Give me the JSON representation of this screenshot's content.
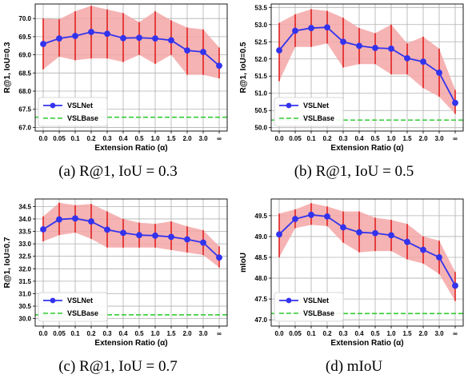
{
  "chart_data": [
    {
      "type": "line",
      "caption": "(a) R@1, IoU = 0.3",
      "ylabel": "R@1, IoU=0.3",
      "xlabel": "Extension Ratio (α)",
      "categories": [
        "0.0",
        "0.05",
        "0.1",
        "0.2",
        "0.3",
        "0.4",
        "0.5",
        "1.0",
        "1.5",
        "2.0",
        "3.0",
        "∞"
      ],
      "ylim": [
        66.9,
        70.4
      ],
      "yticks": [
        "67.0",
        "67.5",
        "68.0",
        "68.5",
        "69.0",
        "69.5",
        "70.0"
      ],
      "grid": true,
      "legend_position": "lower-left",
      "series": [
        {
          "name": "VSLNet",
          "color": "#3333ee",
          "values": [
            69.3,
            69.45,
            69.52,
            69.63,
            69.58,
            69.46,
            69.47,
            69.45,
            69.4,
            69.12,
            69.08,
            68.7
          ],
          "upper": [
            70.0,
            69.98,
            70.2,
            70.35,
            70.25,
            70.15,
            69.9,
            70.2,
            69.95,
            69.75,
            69.7,
            69.2
          ],
          "lower": [
            68.6,
            68.95,
            68.85,
            68.9,
            68.9,
            68.8,
            69.0,
            68.75,
            69.0,
            68.45,
            68.45,
            68.35
          ]
        },
        {
          "name": "VSLBase",
          "color": "#33cc33",
          "style": "dashed",
          "value": 67.28
        }
      ]
    },
    {
      "type": "line",
      "caption": "(b) R@1, IoU = 0.5",
      "ylabel": "R@1, IoU=0.5",
      "xlabel": "Extension Ratio (α)",
      "categories": [
        "0.0",
        "0.05",
        "0.1",
        "0.2",
        "0.3",
        "0.4",
        "0.5",
        "1.0",
        "1.5",
        "2.0",
        "3.0",
        "∞"
      ],
      "ylim": [
        49.9,
        53.6
      ],
      "yticks": [
        "50.0",
        "50.5",
        "51.0",
        "51.5",
        "52.0",
        "52.5",
        "53.0",
        "53.5"
      ],
      "grid": true,
      "legend_position": "lower-left",
      "series": [
        {
          "name": "VSLNet",
          "color": "#3333ee",
          "values": [
            52.25,
            52.82,
            52.9,
            52.92,
            52.5,
            52.38,
            52.32,
            52.3,
            52.02,
            51.92,
            51.6,
            50.72
          ],
          "upper": [
            53.05,
            53.3,
            53.45,
            53.4,
            53.2,
            52.9,
            52.75,
            53.0,
            52.45,
            52.65,
            52.3,
            51.1
          ],
          "lower": [
            51.35,
            52.35,
            52.35,
            52.45,
            51.75,
            51.85,
            51.85,
            51.55,
            51.55,
            51.15,
            50.9,
            50.4
          ]
        },
        {
          "name": "VSLBase",
          "color": "#33cc33",
          "style": "dashed",
          "value": 50.22
        }
      ]
    },
    {
      "type": "line",
      "caption": "(c) R@1, IoU = 0.7",
      "ylabel": "R@1, IoU=0.7",
      "xlabel": "Extension Ratio (α)",
      "categories": [
        "0.0",
        "0.05",
        "0.1",
        "0.2",
        "0.3",
        "0.4",
        "0.5",
        "1.0",
        "1.5",
        "2.0",
        "3.0",
        "∞"
      ],
      "ylim": [
        29.7,
        34.8
      ],
      "yticks": [
        "30.0",
        "30.5",
        "31.0",
        "31.5",
        "32.0",
        "32.5",
        "33.0",
        "33.5",
        "34.0",
        "34.5"
      ],
      "grid": true,
      "legend_position": "lower-left",
      "series": [
        {
          "name": "VSLNet",
          "color": "#3333ee",
          "values": [
            33.58,
            33.98,
            34.02,
            33.9,
            33.57,
            33.44,
            33.35,
            33.33,
            33.28,
            33.18,
            33.05,
            32.45
          ],
          "upper": [
            34.1,
            34.65,
            34.55,
            34.6,
            34.3,
            34.0,
            33.85,
            33.8,
            33.9,
            33.7,
            33.55,
            32.9
          ],
          "lower": [
            33.1,
            33.35,
            33.45,
            33.2,
            32.85,
            32.85,
            32.85,
            32.85,
            32.75,
            32.65,
            32.55,
            32.05
          ]
        },
        {
          "name": "VSLBase",
          "color": "#33cc33",
          "style": "dashed",
          "value": 30.15
        }
      ]
    },
    {
      "type": "line",
      "caption": "(d) mIoU",
      "ylabel": "mIoU",
      "xlabel": "Extension Ratio (α)",
      "categories": [
        "0.0",
        "0.05",
        "0.1",
        "0.2",
        "0.3",
        "0.4",
        "0.5",
        "1.0",
        "1.5",
        "2.0",
        "3.0",
        "∞"
      ],
      "ylim": [
        46.85,
        49.9
      ],
      "yticks": [
        "47.0",
        "47.5",
        "48.0",
        "48.5",
        "49.0",
        "49.5"
      ],
      "grid": true,
      "legend_position": "lower-left",
      "series": [
        {
          "name": "VSLNet",
          "color": "#3333ee",
          "values": [
            49.05,
            49.42,
            49.52,
            49.48,
            49.22,
            49.1,
            49.08,
            49.03,
            48.87,
            48.68,
            48.5,
            47.82
          ],
          "upper": [
            49.55,
            49.65,
            49.8,
            49.72,
            49.6,
            49.6,
            49.45,
            49.4,
            49.3,
            49.0,
            48.9,
            48.15
          ],
          "lower": [
            48.5,
            49.2,
            49.28,
            49.25,
            48.85,
            48.62,
            48.65,
            48.65,
            48.45,
            48.35,
            48.1,
            47.45
          ]
        },
        {
          "name": "VSLBase",
          "color": "#33cc33",
          "style": "dashed",
          "value": 47.15
        }
      ]
    }
  ]
}
